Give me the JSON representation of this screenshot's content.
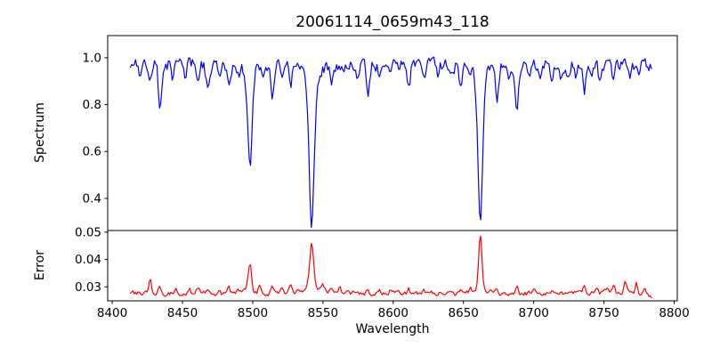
{
  "chart_data": {
    "type": "line",
    "title": "20061114_0659m43_118",
    "xlabel": "Wavelength",
    "xlim": [
      8396.8,
      8802.2
    ],
    "x_ticks": [
      {
        "value": 8400,
        "label": "8400"
      },
      {
        "value": 8450,
        "label": "8450"
      },
      {
        "value": 8500,
        "label": "8500"
      },
      {
        "value": 8550,
        "label": "8550"
      },
      {
        "value": 8600,
        "label": "8600"
      },
      {
        "value": 8650,
        "label": "8650"
      },
      {
        "value": 8700,
        "label": "8700"
      },
      {
        "value": 8750,
        "label": "8750"
      },
      {
        "value": 8800,
        "label": "8800"
      }
    ],
    "x_data_start": 8413,
    "x_data_end": 8784,
    "x_step": 0.9,
    "grid": false,
    "legend": "none",
    "panels": [
      {
        "name": "spectrum",
        "ylabel": "Spectrum",
        "ylim": [
          0.2629,
          1.0946
        ],
        "y_ticks": [
          {
            "value": 1.0,
            "label": "1.0"
          },
          {
            "value": 0.8,
            "label": "0.8"
          },
          {
            "value": 0.6,
            "label": "0.6"
          },
          {
            "value": 0.4,
            "label": "0.4"
          }
        ],
        "color": "#0000ff",
        "continuum": 0.972,
        "noise": {
          "amp": 0.04,
          "corr": 0.4,
          "clip_high": 1.035
        },
        "line_columns": [
          "center",
          "depth",
          "sigma",
          "wing",
          "gamma"
        ],
        "absorption_lines": [
          [
            8420,
            0.075,
            0.9
          ],
          [
            8427,
            0.06,
            0.8
          ],
          [
            8434,
            0.195,
            1.1
          ],
          [
            8443,
            0.055,
            0.9
          ],
          [
            8452,
            0.05,
            0.9
          ],
          [
            8461,
            0.06,
            0.9
          ],
          [
            8468,
            0.115,
            1.1
          ],
          [
            8476,
            0.055,
            0.9
          ],
          [
            8483,
            0.07,
            0.9
          ],
          [
            8490,
            0.05,
            0.8
          ],
          [
            8498,
            0.41,
            1.5,
            0.04,
            4.5
          ],
          [
            8507,
            0.06,
            0.9
          ],
          [
            8514,
            0.145,
            1.1
          ],
          [
            8521,
            0.06,
            0.9
          ],
          [
            8527,
            0.075,
            0.9
          ],
          [
            8542,
            0.6,
            1.8,
            0.075,
            5.5
          ],
          [
            8556,
            0.06,
            0.9
          ],
          [
            8565,
            0.05,
            0.9
          ],
          [
            8574,
            0.045,
            0.9
          ],
          [
            8582,
            0.11,
            1.1
          ],
          [
            8590,
            0.05,
            0.9
          ],
          [
            8598,
            0.065,
            0.9
          ],
          [
            8611,
            0.1,
            1.0
          ],
          [
            8622,
            0.075,
            0.9
          ],
          [
            8632,
            0.05,
            0.9
          ],
          [
            8640,
            0.045,
            0.9
          ],
          [
            8648,
            0.09,
            1.0
          ],
          [
            8662,
            0.58,
            1.7,
            0.07,
            5.0
          ],
          [
            8674,
            0.14,
            1.1
          ],
          [
            8682,
            0.06,
            0.9
          ],
          [
            8688,
            0.21,
            1.2
          ],
          [
            8697,
            0.06,
            0.9
          ],
          [
            8705,
            0.05,
            0.9
          ],
          [
            8713,
            0.085,
            1.0
          ],
          [
            8719,
            0.05,
            0.8
          ],
          [
            8725,
            0.07,
            0.9
          ],
          [
            8730,
            0.06,
            0.8
          ],
          [
            8736,
            0.115,
            1.1
          ],
          [
            8741,
            0.06,
            0.8
          ],
          [
            8747,
            0.08,
            0.9
          ],
          [
            8757,
            0.07,
            0.9
          ],
          [
            8768,
            0.06,
            0.9
          ],
          [
            8775,
            0.05,
            0.8
          ]
        ]
      },
      {
        "name": "error",
        "ylabel": "Error",
        "ylim": [
          0.0249,
          0.0506
        ],
        "y_ticks": [
          {
            "value": 0.05,
            "label": "0.05"
          },
          {
            "value": 0.04,
            "label": "0.04"
          },
          {
            "value": 0.03,
            "label": "0.03"
          }
        ],
        "color": "#ff0000",
        "baseline": 0.0276,
        "noise": {
          "amp": 0.0015,
          "corr": 0.5
        },
        "end_taper": {
          "start": 8776,
          "slope": 0.0001
        },
        "line_columns": [
          "center",
          "height",
          "sigma",
          "wing",
          "gamma"
        ],
        "peaks": [
          [
            8427,
            0.0058,
            0.8
          ],
          [
            8434,
            0.0028,
            1.0
          ],
          [
            8445,
            0.0018,
            0.8
          ],
          [
            8455,
            0.0015,
            0.8
          ],
          [
            8461,
            0.0022,
            0.8
          ],
          [
            8468,
            0.0022,
            0.9
          ],
          [
            8476,
            0.0017,
            0.8
          ],
          [
            8483,
            0.0018,
            0.8
          ],
          [
            8490,
            0.0015,
            0.8
          ],
          [
            8498,
            0.01,
            1.2,
            0.0012,
            3
          ],
          [
            8505,
            0.0032,
            0.9
          ],
          [
            8514,
            0.0028,
            0.9
          ],
          [
            8521,
            0.0016,
            0.8
          ],
          [
            8527,
            0.0026,
            0.9
          ],
          [
            8542,
            0.0165,
            1.4,
            0.0022,
            6
          ],
          [
            8550,
            0.002,
            0.9
          ],
          [
            8556,
            0.0022,
            0.9
          ],
          [
            8562,
            0.0016,
            0.8
          ],
          [
            8574,
            0.0012,
            0.8
          ],
          [
            8582,
            0.0014,
            0.8
          ],
          [
            8590,
            0.001,
            0.8
          ],
          [
            8598,
            0.0012,
            0.8
          ],
          [
            8611,
            0.0014,
            0.8
          ],
          [
            8622,
            0.0012,
            0.8
          ],
          [
            8634,
            0.0011,
            0.8
          ],
          [
            8648,
            0.0013,
            0.8
          ],
          [
            8655,
            0.0015,
            0.8
          ],
          [
            8662,
            0.02,
            1.2,
            0.0016,
            4
          ],
          [
            8674,
            0.0016,
            0.8
          ],
          [
            8688,
            0.003,
            1.0
          ],
          [
            8700,
            0.0011,
            0.8
          ],
          [
            8713,
            0.0014,
            0.8
          ],
          [
            8725,
            0.0013,
            0.8
          ],
          [
            8736,
            0.002,
            0.9
          ],
          [
            8745,
            0.0026,
            0.9
          ],
          [
            8752,
            0.0018,
            0.8
          ],
          [
            8757,
            0.0028,
            0.9
          ],
          [
            8765,
            0.005,
            1.0
          ],
          [
            8773,
            0.0038,
            0.9
          ],
          [
            8779,
            0.0018,
            0.8
          ]
        ]
      }
    ]
  }
}
